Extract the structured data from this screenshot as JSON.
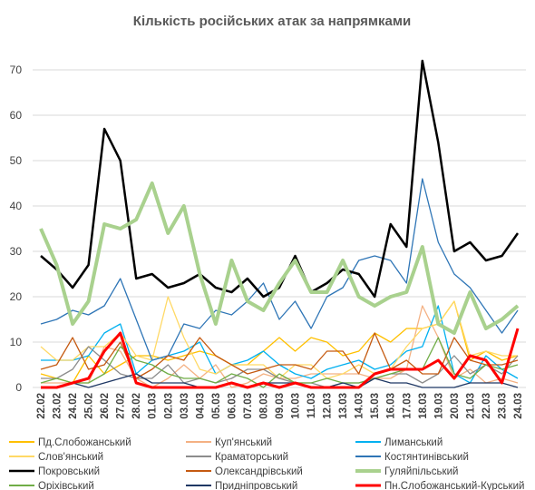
{
  "chart_data": {
    "type": "line",
    "title": "Кількість російських атак за напрямками",
    "categories": [
      "22.02",
      "23.02",
      "24.02",
      "25.02",
      "26.02",
      "27.02",
      "28.02",
      "01.03",
      "02.03",
      "03.03",
      "04.03",
      "05.03",
      "06.03",
      "07.03",
      "08.03",
      "09.03",
      "10.03",
      "11.03",
      "12.03",
      "13.03",
      "14.03",
      "15.03",
      "16.03",
      "17.03",
      "18.03",
      "19.03",
      "20.03",
      "21.03",
      "22.03",
      "23.03",
      "24.03"
    ],
    "ylim": [
      0,
      75
    ],
    "yticks": [
      0,
      10,
      20,
      30,
      40,
      50,
      60,
      70
    ],
    "grid": true,
    "series": [
      {
        "name": "Пд.Слобожанський",
        "color": "#ffc000",
        "width": 1.3,
        "values": [
          3,
          2,
          1,
          7,
          3,
          5,
          7,
          7,
          6,
          7,
          8,
          7,
          5,
          5,
          8,
          11,
          8,
          11,
          10,
          7,
          8,
          12,
          10,
          13,
          13,
          14,
          19,
          6,
          8,
          6,
          7
        ]
      },
      {
        "name": "Куп'янський",
        "color": "#f4b183",
        "width": 1.3,
        "values": [
          1,
          1,
          1,
          1,
          9,
          8,
          2,
          0,
          2,
          5,
          2,
          5,
          0,
          1,
          3,
          2,
          2,
          3,
          3,
          3,
          3,
          2,
          2,
          4,
          18,
          11,
          2,
          4,
          1,
          2,
          1
        ]
      },
      {
        "name": "Лиманський",
        "color": "#00b0f0",
        "width": 1.3,
        "values": [
          6,
          6,
          6,
          7,
          12,
          14,
          3,
          6,
          7,
          8,
          10,
          3,
          5,
          6,
          8,
          5,
          3,
          2,
          4,
          5,
          6,
          4,
          5,
          8,
          9,
          18,
          3,
          1,
          7,
          4,
          2
        ]
      },
      {
        "name": "Слов'янський",
        "color": "#ffd966",
        "width": 1.3,
        "values": [
          9,
          6,
          6,
          9,
          9,
          12,
          7,
          6,
          20,
          11,
          4,
          3,
          5,
          5,
          5,
          2,
          5,
          5,
          2,
          3,
          5,
          3,
          4,
          9,
          13,
          14,
          19,
          7,
          8,
          7,
          7
        ]
      },
      {
        "name": "Краматорський",
        "color": "#8c8c8c",
        "width": 1.3,
        "values": [
          2,
          2,
          4,
          9,
          6,
          3,
          2,
          2,
          5,
          1,
          2,
          1,
          2,
          4,
          4,
          2,
          1,
          1,
          0,
          1,
          1,
          2,
          3,
          3,
          1,
          3,
          7,
          3,
          5,
          3,
          7
        ]
      },
      {
        "name": "Костянтинівський",
        "color": "#2e75b6",
        "width": 1.3,
        "values": [
          14,
          15,
          17,
          16,
          18,
          24,
          15,
          6,
          7,
          14,
          13,
          17,
          16,
          19,
          23,
          15,
          19,
          13,
          20,
          22,
          28,
          29,
          28,
          23,
          46,
          32,
          25,
          22,
          17,
          12,
          17
        ]
      },
      {
        "name": "Покровський",
        "color": "#000000",
        "width": 2.5,
        "values": [
          29,
          26,
          22,
          27,
          57,
          50,
          24,
          25,
          22,
          23,
          25,
          22,
          21,
          24,
          20,
          22,
          29,
          21,
          23,
          26,
          25,
          20,
          36,
          31,
          72,
          54,
          30,
          32,
          28,
          29,
          34
        ]
      },
      {
        "name": "Олександрівський",
        "color": "#c55a11",
        "width": 1.3,
        "values": [
          4,
          5,
          11,
          4,
          5,
          10,
          2,
          4,
          7,
          6,
          11,
          7,
          5,
          3,
          4,
          5,
          5,
          4,
          8,
          8,
          3,
          12,
          4,
          6,
          3,
          3,
          11,
          6,
          5,
          5,
          6
        ]
      },
      {
        "name": "Гуляйпільський",
        "color": "#a9d18e",
        "width": 4,
        "values": [
          35,
          27,
          14,
          19,
          36,
          35,
          37,
          45,
          34,
          40,
          25,
          14,
          28,
          19,
          17,
          23,
          28,
          21,
          21,
          28,
          20,
          18,
          20,
          21,
          31,
          14,
          12,
          21,
          13,
          15,
          18
        ]
      },
      {
        "name": "Оріхівський",
        "color": "#70ad47",
        "width": 1.3,
        "values": [
          1,
          2,
          1,
          1,
          3,
          9,
          6,
          5,
          3,
          2,
          2,
          1,
          3,
          2,
          0,
          3,
          1,
          1,
          2,
          1,
          1,
          2,
          3,
          4,
          4,
          11,
          3,
          2,
          5,
          4,
          5
        ]
      },
      {
        "name": "Придніпровський",
        "color": "#1f3864",
        "width": 1.3,
        "values": [
          0,
          0,
          1,
          0,
          1,
          2,
          3,
          1,
          1,
          1,
          0,
          0,
          1,
          0,
          1,
          1,
          1,
          0,
          0,
          1,
          0,
          2,
          1,
          1,
          0,
          0,
          0,
          1,
          1,
          1,
          0
        ]
      },
      {
        "name": "Пн.Слобожанський-Курський",
        "color": "#ff0000",
        "width": 3,
        "values": [
          0,
          0,
          1,
          2,
          8,
          12,
          1,
          0,
          0,
          0,
          0,
          0,
          1,
          0,
          1,
          0,
          1,
          0,
          0,
          0,
          0,
          3,
          4,
          4,
          4,
          6,
          2,
          7,
          6,
          1,
          13
        ]
      }
    ]
  }
}
